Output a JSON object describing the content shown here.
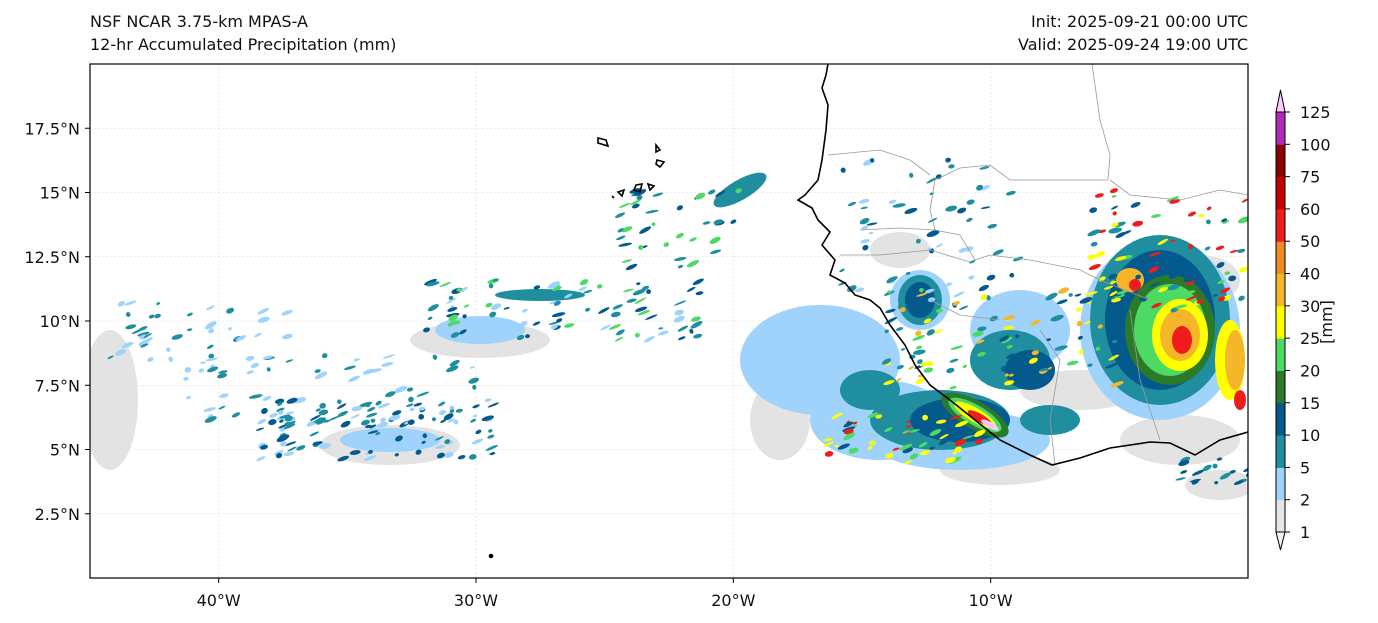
{
  "header": {
    "model": "NSF NCAR 3.75-km MPAS-A",
    "field": "12-hr Accumulated Precipitation (mm)",
    "init": "Init: 2025-09-21 00:00 UTC",
    "valid": "Valid: 2025-09-24 19:00 UTC"
  },
  "axes": {
    "lat_labels": [
      "17.5°N",
      "15°N",
      "12.5°N",
      "10°N",
      "7.5°N",
      "5°N",
      "2.5°N"
    ],
    "lat_values": [
      17.5,
      15,
      12.5,
      10,
      7.5,
      5,
      2.5
    ],
    "lon_labels": [
      "40°W",
      "30°W",
      "20°W",
      "10°W"
    ],
    "lon_values": [
      -40,
      -30,
      -20,
      -10
    ],
    "lon_range": [
      -45,
      0
    ],
    "lat_range": [
      0,
      20
    ],
    "gridlines": true
  },
  "colorbar": {
    "unit_label": "[mm]",
    "levels": [
      "1",
      "2",
      "5",
      "10",
      "15",
      "20",
      "25",
      "30",
      "40",
      "50",
      "60",
      "75",
      "100",
      "125"
    ],
    "colors": [
      "#e6e6e6",
      "#9fd3fb",
      "#1f8fa0",
      "#045a8d",
      "#2a7a2a",
      "#4cd964",
      "#ffff00",
      "#f6b62a",
      "#f08a24",
      "#ee1c1c",
      "#c40000",
      "#8b0000",
      "#b02ab7",
      "#ffc8ff"
    ],
    "extend": "both"
  },
  "colors": {
    "coastline": "#000000",
    "borders": "#999999",
    "grid": "#dddddd"
  }
}
